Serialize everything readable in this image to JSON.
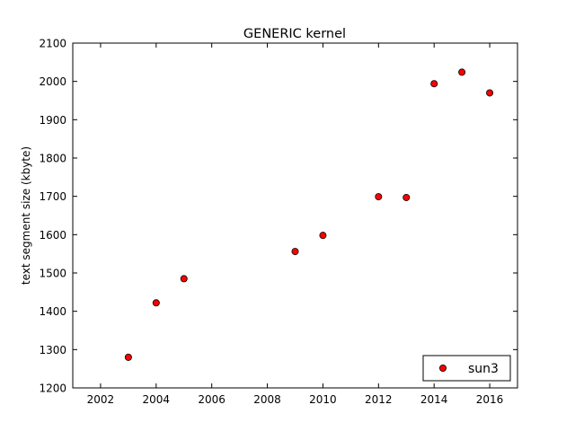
{
  "chart_data": {
    "type": "scatter",
    "title": "GENERIC kernel",
    "xlabel": "",
    "ylabel": "text segment size (kbyte)",
    "xlim": [
      2001,
      2017
    ],
    "ylim": [
      1200,
      2100
    ],
    "xticks": [
      2002,
      2004,
      2006,
      2008,
      2010,
      2012,
      2014,
      2016
    ],
    "yticks": [
      1200,
      1300,
      1400,
      1500,
      1600,
      1700,
      1800,
      1900,
      2000,
      2100
    ],
    "grid": false,
    "legend_position": "lower-right",
    "series": [
      {
        "name": "sun3",
        "color": "#ff0000",
        "x": [
          2003,
          2004,
          2005,
          2009,
          2010,
          2012,
          2013,
          2014,
          2015,
          2016
        ],
        "y": [
          1280,
          1422,
          1485,
          1556,
          1598,
          1699,
          1697,
          1994,
          2024,
          1970
        ]
      }
    ]
  }
}
